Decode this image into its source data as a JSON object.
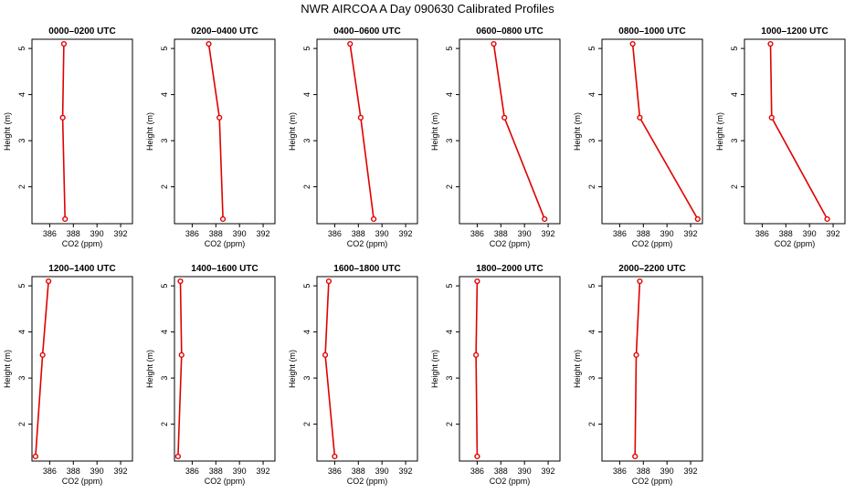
{
  "title": "NWR AIRCOA A  Day 090630  Calibrated Profiles",
  "chart_data": [
    {
      "type": "line",
      "title": "0000–0200 UTC",
      "xlabel": "CO2 (ppm)",
      "ylabel": "Height (m)",
      "xlim": [
        384.5,
        393
      ],
      "ylim": [
        1.2,
        5.2
      ],
      "xticks": [
        386,
        388,
        390,
        392
      ],
      "yticks": [
        2,
        3,
        4,
        5
      ],
      "x": [
        387.3,
        387.1,
        387.2
      ],
      "y": [
        1.3,
        3.5,
        5.1
      ]
    },
    {
      "type": "line",
      "title": "0200–0400 UTC",
      "xlabel": "CO2 (ppm)",
      "ylabel": "Height (m)",
      "xlim": [
        384.5,
        393
      ],
      "ylim": [
        1.2,
        5.2
      ],
      "xticks": [
        386,
        388,
        390,
        392
      ],
      "yticks": [
        2,
        3,
        4,
        5
      ],
      "x": [
        388.6,
        388.3,
        387.4
      ],
      "y": [
        1.3,
        3.5,
        5.1
      ]
    },
    {
      "type": "line",
      "title": "0400–0600 UTC",
      "xlabel": "CO2 (ppm)",
      "ylabel": "Height (m)",
      "xlim": [
        384.5,
        393
      ],
      "ylim": [
        1.2,
        5.2
      ],
      "xticks": [
        386,
        388,
        390,
        392
      ],
      "yticks": [
        2,
        3,
        4,
        5
      ],
      "x": [
        389.3,
        388.2,
        387.3
      ],
      "y": [
        1.3,
        3.5,
        5.1
      ]
    },
    {
      "type": "line",
      "title": "0600–0800 UTC",
      "xlabel": "CO2 (ppm)",
      "ylabel": "Height (m)",
      "xlim": [
        384.5,
        393
      ],
      "ylim": [
        1.2,
        5.2
      ],
      "xticks": [
        386,
        388,
        390,
        392
      ],
      "yticks": [
        2,
        3,
        4,
        5
      ],
      "x": [
        391.7,
        388.3,
        387.4
      ],
      "y": [
        1.3,
        3.5,
        5.1
      ]
    },
    {
      "type": "line",
      "title": "0800–1000 UTC",
      "xlabel": "CO2 (ppm)",
      "ylabel": "Height (m)",
      "xlim": [
        384.5,
        393
      ],
      "ylim": [
        1.2,
        5.2
      ],
      "xticks": [
        386,
        388,
        390,
        392
      ],
      "yticks": [
        2,
        3,
        4,
        5
      ],
      "x": [
        392.6,
        387.7,
        387.1
      ],
      "y": [
        1.3,
        3.5,
        5.1
      ]
    },
    {
      "type": "line",
      "title": "1000–1200 UTC",
      "xlabel": "CO2 (ppm)",
      "ylabel": "Height (m)",
      "xlim": [
        384.5,
        393
      ],
      "ylim": [
        1.2,
        5.2
      ],
      "xticks": [
        386,
        388,
        390,
        392
      ],
      "yticks": [
        2,
        3,
        4,
        5
      ],
      "x": [
        391.5,
        386.8,
        386.7
      ],
      "y": [
        1.3,
        3.5,
        5.1
      ]
    },
    {
      "type": "line",
      "title": "1200–1400 UTC",
      "xlabel": "CO2 (ppm)",
      "ylabel": "Height (m)",
      "xlim": [
        384.5,
        393
      ],
      "ylim": [
        1.2,
        5.2
      ],
      "xticks": [
        386,
        388,
        390,
        392
      ],
      "yticks": [
        2,
        3,
        4,
        5
      ],
      "x": [
        384.8,
        385.4,
        385.9
      ],
      "y": [
        1.3,
        3.5,
        5.1
      ]
    },
    {
      "type": "line",
      "title": "1400–1600 UTC",
      "xlabel": "CO2 (ppm)",
      "ylabel": "Height (m)",
      "xlim": [
        384.5,
        393
      ],
      "ylim": [
        1.2,
        5.2
      ],
      "xticks": [
        386,
        388,
        390,
        392
      ],
      "yticks": [
        2,
        3,
        4,
        5
      ],
      "x": [
        384.8,
        385.1,
        385.0
      ],
      "y": [
        1.3,
        3.5,
        5.1
      ]
    },
    {
      "type": "line",
      "title": "1600–1800 UTC",
      "xlabel": "CO2 (ppm)",
      "ylabel": "Height (m)",
      "xlim": [
        384.5,
        393
      ],
      "ylim": [
        1.2,
        5.2
      ],
      "xticks": [
        386,
        388,
        390,
        392
      ],
      "yticks": [
        2,
        3,
        4,
        5
      ],
      "x": [
        386.0,
        385.2,
        385.5
      ],
      "y": [
        1.3,
        3.5,
        5.1
      ]
    },
    {
      "type": "line",
      "title": "1800–2000 UTC",
      "xlabel": "CO2 (ppm)",
      "ylabel": "Height (m)",
      "xlim": [
        384.5,
        393
      ],
      "ylim": [
        1.2,
        5.2
      ],
      "xticks": [
        386,
        388,
        390,
        392
      ],
      "yticks": [
        2,
        3,
        4,
        5
      ],
      "x": [
        386.0,
        385.9,
        386.0
      ],
      "y": [
        1.3,
        3.5,
        5.1
      ]
    },
    {
      "type": "line",
      "title": "2000–2200 UTC",
      "xlabel": "CO2 (ppm)",
      "ylabel": "Height (m)",
      "xlim": [
        384.5,
        393
      ],
      "ylim": [
        1.2,
        5.2
      ],
      "xticks": [
        386,
        388,
        390,
        392
      ],
      "yticks": [
        2,
        3,
        4,
        5
      ],
      "x": [
        387.3,
        387.4,
        387.7
      ],
      "y": [
        1.3,
        3.5,
        5.1
      ]
    }
  ]
}
